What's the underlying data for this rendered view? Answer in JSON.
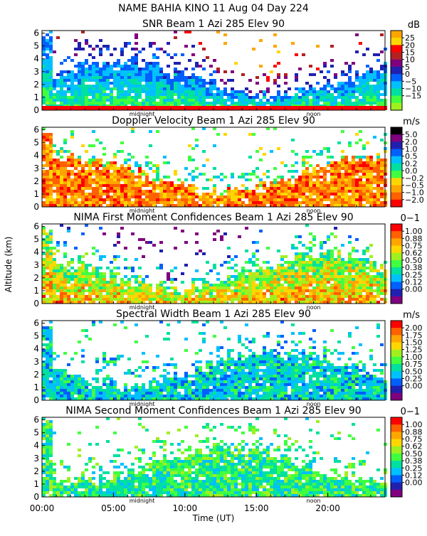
{
  "figure": {
    "title": "NAME BAHIA KINO   11 Aug 04 Day 224",
    "y_axis_label": "Altitude (km)",
    "x_axis_label": "Time (UT)",
    "x_ticks": [
      "00:00",
      "05:00",
      "10:00",
      "15:00",
      "20:00"
    ],
    "x_tick_hours": [
      0,
      5,
      10,
      15,
      20
    ],
    "x_range_hours": [
      0,
      24
    ],
    "markers": [
      {
        "label": "midnight",
        "hour": 7.0
      },
      {
        "label": "noon",
        "hour": 19.0
      }
    ],
    "y_ticks": [
      "0",
      "1",
      "2",
      "3",
      "4",
      "5",
      "6"
    ]
  },
  "chart_data": [
    {
      "type": "heatmap",
      "title": "SNR Beam 1 Azi 285 Elev 90",
      "unit": "dB",
      "ylim": [
        0,
        6.2
      ],
      "colorbar": {
        "ticks": [
          "25",
          "20",
          "15",
          "10",
          "5",
          "0",
          "−5",
          "−10",
          "−15"
        ],
        "colors": [
          "#ffa500",
          "#ffd700",
          "#ff0000",
          "#b22222",
          "#800080",
          "#2020b0",
          "#0060ff",
          "#00c0ff",
          "#00e0a0",
          "#40ff40",
          "#a0f020"
        ]
      }
    },
    {
      "type": "heatmap",
      "title": "Doppler Velocity Beam 1 Azi 285 Elev 90",
      "unit": "m/s",
      "ylim": [
        0,
        6.2
      ],
      "colorbar": {
        "ticks": [
          "5.0",
          "2.0",
          "1.0",
          "0.5",
          "0.2",
          "0.0",
          "−0.2",
          "−0.5",
          "−1.0",
          "−2.0"
        ],
        "colors": [
          "#000000",
          "#800080",
          "#2020b0",
          "#0060ff",
          "#00c0ff",
          "#00e0a0",
          "#40ff40",
          "#ffd700",
          "#ffa500",
          "#ff6000",
          "#ff0000"
        ]
      }
    },
    {
      "type": "heatmap",
      "title": "NIMA First Moment Confidences Beam 1 Azi 285 Elev 90",
      "unit": "0−1",
      "ylim": [
        0,
        6.2
      ],
      "colorbar": {
        "ticks": [
          "1.00",
          "0.88",
          "0.75",
          "0.62",
          "0.50",
          "0.38",
          "0.25",
          "0.12",
          "0.00"
        ],
        "colors": [
          "#ff0000",
          "#ff6000",
          "#ffa500",
          "#ffd700",
          "#a0f020",
          "#40ff40",
          "#00e0a0",
          "#00c0ff",
          "#0060ff",
          "#2020b0",
          "#800080"
        ]
      }
    },
    {
      "type": "heatmap",
      "title": "Spectral Width Beam 1 Azi 285 Elev 90",
      "unit": "m/s",
      "ylim": [
        0,
        6.2
      ],
      "colorbar": {
        "ticks": [
          "2.00",
          "1.75",
          "1.50",
          "1.25",
          "1.00",
          "0.75",
          "0.50",
          "0.25",
          "0.00"
        ],
        "colors": [
          "#ff0000",
          "#ff6000",
          "#ffa500",
          "#ffd700",
          "#a0f020",
          "#40ff40",
          "#00e0a0",
          "#00c0ff",
          "#0060ff",
          "#2020b0",
          "#800080"
        ]
      }
    },
    {
      "type": "heatmap",
      "title": "NIMA Second Moment Confidences Beam 1 Azi 285 Elev 90",
      "unit": "0−1",
      "ylim": [
        0,
        6.2
      ],
      "colorbar": {
        "ticks": [
          "1.00",
          "0.88",
          "0.75",
          "0.62",
          "0.50",
          "0.38",
          "0.25",
          "0.12",
          "0.00"
        ],
        "colors": [
          "#ff0000",
          "#ff6000",
          "#ffa500",
          "#ffd700",
          "#a0f020",
          "#40ff40",
          "#00e0a0",
          "#00c0ff",
          "#0060ff",
          "#2020b0",
          "#800080"
        ]
      }
    }
  ]
}
